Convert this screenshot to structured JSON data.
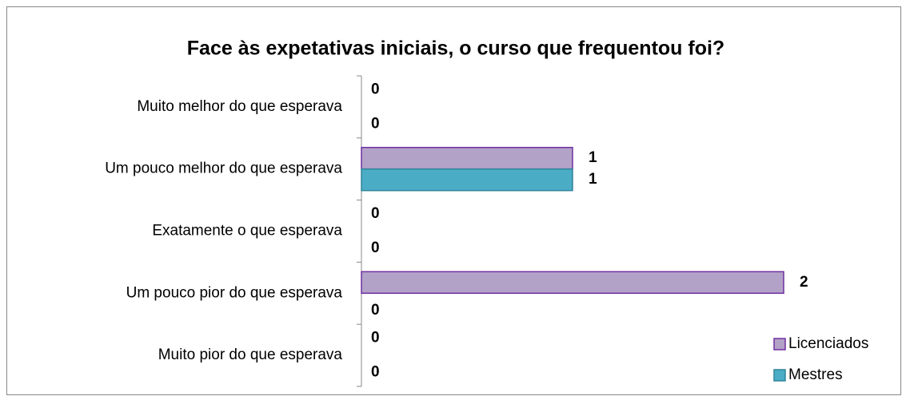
{
  "chart_data": {
    "type": "bar",
    "orientation": "horizontal",
    "title": "Face às expetativas iniciais, o curso que frequentou foi?",
    "categories": [
      "Muito melhor do que esperava",
      "Um pouco melhor do que esperava",
      "Exatamente o que esperava",
      "Um pouco pior do que esperava",
      "Muito pior do que esperava"
    ],
    "series": [
      {
        "name": "Licenciados",
        "color": "#b3a2c7",
        "edge": "#7030a0",
        "values": [
          0,
          1,
          0,
          2,
          0
        ]
      },
      {
        "name": "Mestres",
        "color": "#4bacc6",
        "edge": "#31859c",
        "values": [
          0,
          1,
          0,
          0,
          0
        ]
      }
    ],
    "xlim": [
      0,
      2
    ],
    "data_labels": true,
    "legend": "lower right"
  }
}
